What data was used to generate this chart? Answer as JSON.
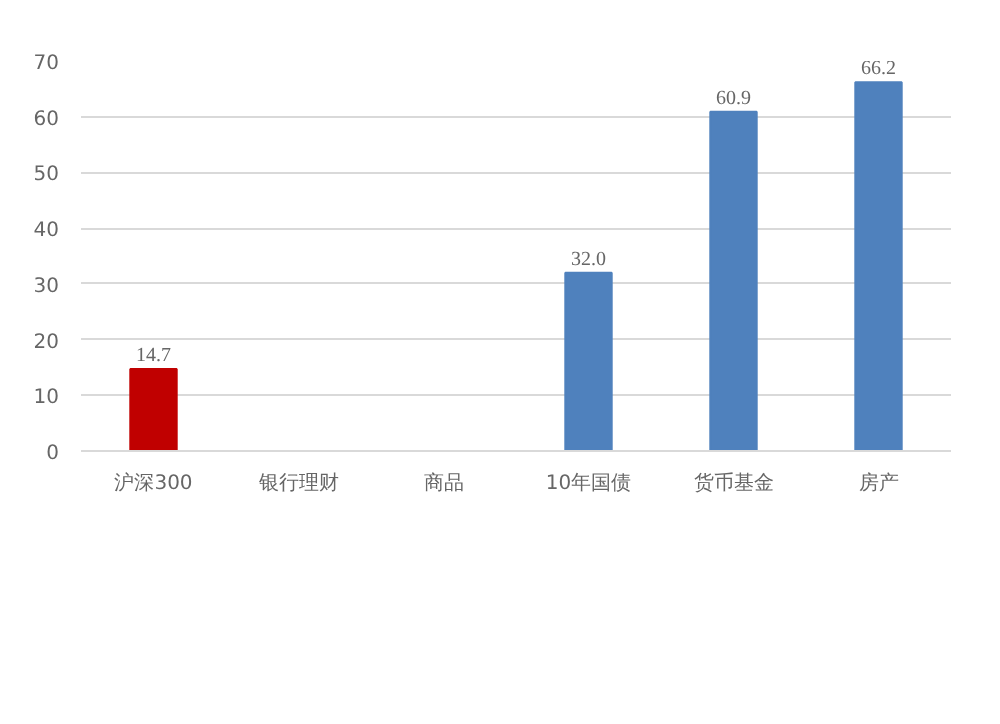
{
  "chart_data": {
    "type": "bar",
    "categories": [
      "沪深300",
      "银行理财",
      "商品",
      "10年国债",
      "货币基金",
      "房产"
    ],
    "values": [
      14.7,
      null,
      null,
      32.0,
      60.9,
      66.2
    ],
    "value_labels": [
      "14.7",
      null,
      null,
      "32.0",
      "60.9",
      "66.2"
    ],
    "colors": [
      "#c00000",
      "#4f81bd",
      "#4f81bd",
      "#4f81bd",
      "#4f81bd",
      "#4f81bd"
    ],
    "ylim": [
      0,
      70
    ],
    "yticks": [
      0,
      10,
      20,
      30,
      40,
      50,
      60,
      70
    ],
    "grid": "y"
  }
}
